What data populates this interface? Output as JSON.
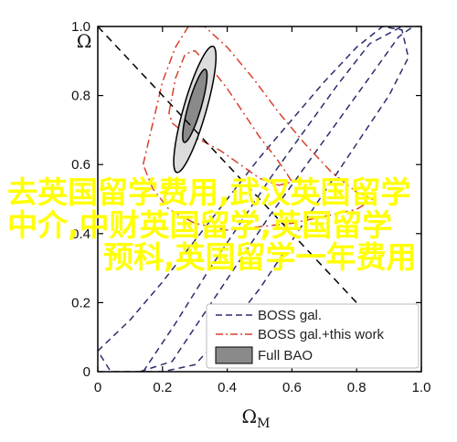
{
  "chart_data": {
    "type": "contour",
    "xlabel": "Ω",
    "xlabel_sub": "M",
    "ylabel": "Ω",
    "xlim": [
      0,
      1
    ],
    "ylim": [
      0,
      1
    ],
    "xticks": [
      "0",
      "0.2",
      "0.4",
      "0.6",
      "0.8",
      "1.0"
    ],
    "yticks": [
      "0",
      "0.2",
      "0.4",
      "0.6",
      "0.8",
      "1.0"
    ],
    "legend_position": "bottom-right",
    "reference_line": {
      "x": [
        0,
        1
      ],
      "y": [
        1,
        0
      ],
      "style": "dashed",
      "color": "#000000"
    },
    "series": [
      {
        "name": "BOSS gal.",
        "style": "dashed",
        "color": "#2b2d6e",
        "contours": [
          {
            "level": "inner",
            "x": [
              0.14,
              0.24,
              0.34,
              0.44,
              0.54,
              0.64,
              0.74,
              0.84,
              0.94,
              0.975,
              0.93,
              0.83,
              0.73,
              0.63,
              0.53,
              0.43,
              0.33,
              0.23,
              0.13
            ],
            "y": [
              0.0,
              0.14,
              0.29,
              0.43,
              0.57,
              0.7,
              0.83,
              0.95,
              1.0,
              1.0,
              0.97,
              0.84,
              0.71,
              0.58,
              0.45,
              0.31,
              0.17,
              0.03,
              0.0
            ]
          },
          {
            "level": "outer",
            "x": [
              0.0,
              0.1,
              0.2,
              0.3,
              0.4,
              0.5,
              0.6,
              0.7,
              0.8,
              0.88,
              0.94,
              0.96,
              0.9,
              0.8,
              0.7,
              0.6,
              0.5,
              0.4,
              0.3,
              0.2,
              0.1,
              0.04
            ],
            "y": [
              0.06,
              0.15,
              0.26,
              0.38,
              0.5,
              0.62,
              0.73,
              0.84,
              0.94,
              1.0,
              0.99,
              0.91,
              0.8,
              0.66,
              0.52,
              0.38,
              0.24,
              0.12,
              0.02,
              0.0,
              0.0,
              0.0
            ]
          }
        ]
      },
      {
        "name": "BOSS gal.+this work",
        "style": "dashdot",
        "color": "#d7412c",
        "contours": [
          {
            "level": "inner",
            "x": [
              0.22,
              0.24,
              0.27,
              0.3,
              0.35,
              0.4,
              0.45,
              0.5,
              0.55,
              0.58,
              0.6,
              0.56,
              0.5,
              0.44,
              0.38,
              0.32,
              0.27,
              0.23
            ],
            "y": [
              0.75,
              0.85,
              0.92,
              0.93,
              0.88,
              0.82,
              0.75,
              0.68,
              0.62,
              0.58,
              0.55,
              0.54,
              0.56,
              0.6,
              0.64,
              0.67,
              0.69,
              0.72
            ]
          },
          {
            "level": "outer",
            "x": [
              0.14,
              0.17,
              0.2,
              0.24,
              0.28,
              0.33,
              0.4,
              0.48,
              0.56,
              0.64,
              0.72,
              0.8,
              0.85,
              0.8,
              0.7,
              0.6,
              0.5,
              0.4,
              0.3,
              0.22,
              0.17
            ],
            "y": [
              0.6,
              0.72,
              0.84,
              0.94,
              1.0,
              1.0,
              0.94,
              0.85,
              0.75,
              0.66,
              0.58,
              0.52,
              0.5,
              0.47,
              0.45,
              0.43,
              0.42,
              0.41,
              0.43,
              0.47,
              0.53
            ]
          }
        ]
      },
      {
        "name": "Full BAO",
        "style": "filled",
        "colors": {
          "outer": "#dcdcdc",
          "inner": "#8a8a8a",
          "edge": "#000000"
        },
        "contours": [
          {
            "level": "outer",
            "center": [
              0.3,
              0.76
            ],
            "semi_axes": [
              0.035,
              0.19
            ],
            "angle_deg": 16
          },
          {
            "level": "inner",
            "center": [
              0.3,
              0.77
            ],
            "semi_axes": [
              0.02,
              0.11
            ],
            "angle_deg": 16
          }
        ]
      }
    ],
    "legend": [
      {
        "label": "BOSS gal."
      },
      {
        "label": "BOSS gal.+this work"
      },
      {
        "label": "Full BAO"
      }
    ]
  },
  "watermark": {
    "lines": [
      "去英国留学费用,武汉英国留学",
      "中介,中财英国留学,英国留学",
      "预科,英国留学一年费用"
    ]
  }
}
